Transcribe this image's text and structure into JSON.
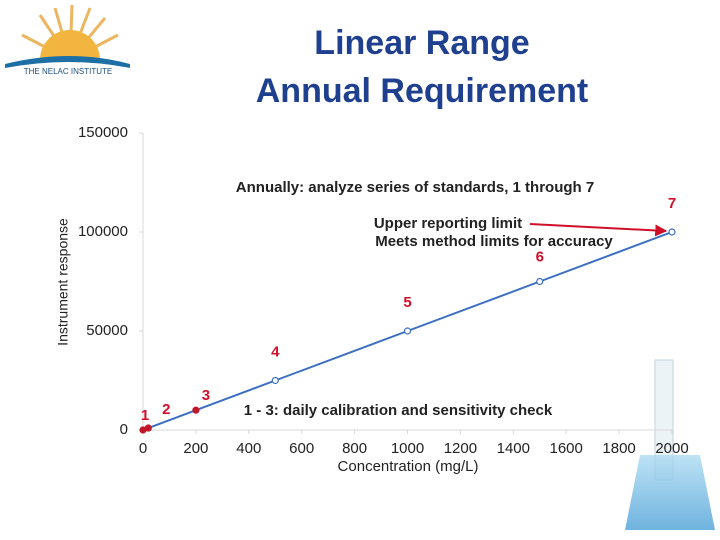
{
  "logo_text": "THE NELAC INSTITUTE",
  "chart_data": {
    "type": "line",
    "title": [
      "Linear Range",
      "Annual Requirement"
    ],
    "x_label": "Concentration (mg/L)",
    "y_label": "Instrument response",
    "x": [
      0,
      20,
      200,
      500,
      1000,
      1500,
      2000
    ],
    "values": [
      0,
      1000,
      10000,
      25000,
      50000,
      75000,
      100000
    ],
    "point_labels": [
      "1",
      "2",
      "3",
      "4",
      "5",
      "6",
      "7"
    ],
    "color": "#3b6fc4",
    "marker_colors": [
      "#c0182a",
      "#c0182a",
      "#c0182a",
      "#ffffff",
      "#ffffff",
      "#ffffff",
      "#ffffff"
    ],
    "annotation_color": "#d0102a",
    "xlim": [
      0,
      2000
    ],
    "xticks": [
      0,
      200,
      400,
      600,
      800,
      1000,
      1200,
      1400,
      1600,
      1800,
      2000
    ],
    "ylim": [
      0,
      150000
    ],
    "yticks": [
      0,
      50000,
      100000,
      150000
    ],
    "annotations": [
      "Annually: analyze series of standards, 1 through 7",
      "Upper reporting limit",
      "Meets method limits for accuracy",
      "1 - 3: daily calibration and sensitivity check"
    ],
    "grid": false
  }
}
